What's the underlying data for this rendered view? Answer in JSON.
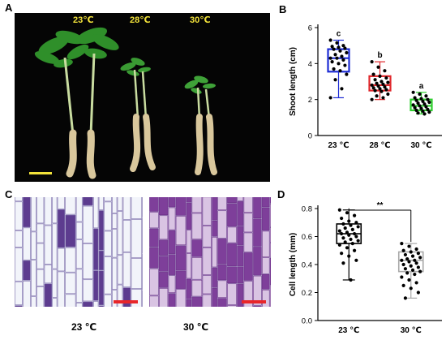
{
  "panels": {
    "a": "A",
    "b": "B",
    "c": "C",
    "d": "D"
  },
  "photo": {
    "labels": [
      "23℃",
      "28℃",
      "30℃"
    ],
    "label_color": "#f2e23a"
  },
  "micrographs": {
    "labels": [
      "23 ℃",
      "30 ℃"
    ],
    "scalebar_color": "#e8262a"
  },
  "chart_data": [
    {
      "type": "box",
      "panel": "B",
      "ylabel": "Shoot length (cm)",
      "ylim": [
        0,
        6
      ],
      "yticks": [
        0,
        2,
        4,
        6
      ],
      "categories": [
        "23 ℃",
        "28 ℃",
        "30 ℃"
      ],
      "significance": [
        "c",
        "b",
        "a"
      ],
      "boxes": [
        {
          "name": "23 ℃",
          "color": "#1c2bd4",
          "min": 2.1,
          "q1": 3.55,
          "median": 4.3,
          "q3": 4.8,
          "max": 5.3,
          "points": [
            5.3,
            5.15,
            5.0,
            4.95,
            4.9,
            4.85,
            4.8,
            4.7,
            4.6,
            4.5,
            4.4,
            4.3,
            4.3,
            4.2,
            4.1,
            4.0,
            3.9,
            3.7,
            3.6,
            3.4,
            3.1,
            2.6,
            2.1
          ]
        },
        {
          "name": "28 ℃",
          "color": "#e0272b",
          "min": 2.0,
          "q1": 2.5,
          "median": 2.8,
          "q3": 3.3,
          "max": 4.1,
          "points": [
            4.1,
            3.8,
            3.6,
            3.4,
            3.3,
            3.2,
            3.1,
            3.0,
            2.95,
            2.9,
            2.85,
            2.8,
            2.75,
            2.7,
            2.65,
            2.6,
            2.55,
            2.5,
            2.45,
            2.3,
            2.2,
            2.1,
            2.0
          ]
        },
        {
          "name": "30 ℃",
          "color": "#2fcf2f",
          "min": 1.2,
          "q1": 1.4,
          "median": 1.65,
          "q3": 2.0,
          "max": 2.4,
          "points": [
            2.4,
            2.3,
            2.2,
            2.1,
            2.05,
            2.0,
            1.95,
            1.9,
            1.85,
            1.8,
            1.75,
            1.7,
            1.65,
            1.6,
            1.55,
            1.5,
            1.45,
            1.4,
            1.35,
            1.3,
            1.25,
            1.2
          ]
        }
      ]
    },
    {
      "type": "box",
      "panel": "D",
      "ylabel": "Cell length (mm)",
      "ylim": [
        0.0,
        0.8
      ],
      "yticks": [
        0.0,
        0.2,
        0.4,
        0.6,
        0.8
      ],
      "categories": [
        "23 ℃",
        "30 ℃"
      ],
      "annotation": "**",
      "boxes": [
        {
          "name": "23 ℃",
          "color": "#000000",
          "min": 0.29,
          "q1": 0.55,
          "median": 0.62,
          "q3": 0.69,
          "max": 0.79,
          "points": [
            0.79,
            0.77,
            0.75,
            0.73,
            0.71,
            0.7,
            0.69,
            0.68,
            0.67,
            0.66,
            0.65,
            0.64,
            0.63,
            0.62,
            0.62,
            0.61,
            0.6,
            0.59,
            0.58,
            0.57,
            0.56,
            0.55,
            0.54,
            0.52,
            0.5,
            0.48,
            0.46,
            0.43,
            0.41,
            0.29
          ]
        },
        {
          "name": "30 ℃",
          "color": "#a9a9a9",
          "min": 0.16,
          "q1": 0.35,
          "median": 0.43,
          "q3": 0.49,
          "max": 0.55,
          "points": [
            0.55,
            0.53,
            0.51,
            0.5,
            0.49,
            0.48,
            0.47,
            0.46,
            0.45,
            0.44,
            0.43,
            0.43,
            0.42,
            0.41,
            0.4,
            0.39,
            0.38,
            0.37,
            0.36,
            0.35,
            0.34,
            0.33,
            0.31,
            0.29,
            0.27,
            0.25,
            0.23,
            0.2,
            0.16
          ]
        }
      ]
    }
  ]
}
